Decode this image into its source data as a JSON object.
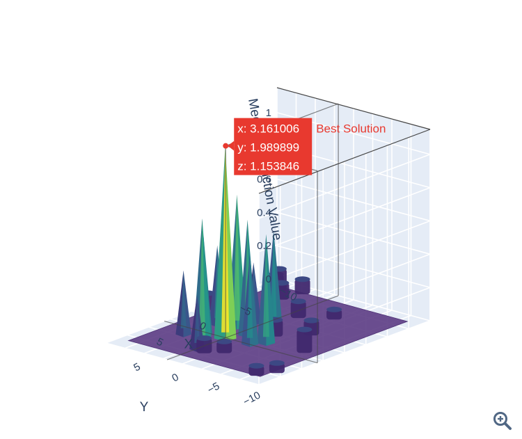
{
  "chart_data": {
    "type": "surface3d",
    "title": "",
    "axes": {
      "x": {
        "title": "X",
        "ticks": [
          "−10",
          "−5",
          "0",
          "5"
        ],
        "range": [
          -10,
          10
        ]
      },
      "y": {
        "title": "Y",
        "ticks": [
          "−10",
          "−5",
          "0",
          "5"
        ],
        "range": [
          -10,
          10
        ]
      },
      "z": {
        "title": "Megacity Function Value",
        "ticks": [
          "0",
          "0.2",
          "0.4",
          "0.6",
          "0.8",
          "1"
        ],
        "range": [
          0,
          1.15
        ]
      }
    },
    "colorscale": [
      "#440154",
      "#3b528b",
      "#21918c",
      "#5ec962",
      "#fde725"
    ],
    "surface_base_value": 0,
    "peaks": [
      {
        "x": 3.2,
        "y": 2.0,
        "z": 1.15
      },
      {
        "x": 1.5,
        "y": 1.0,
        "z": 0.69
      },
      {
        "x": 5.0,
        "y": 3.0,
        "z": 0.74
      },
      {
        "x": 0.5,
        "y": 3.5,
        "z": 0.79
      },
      {
        "x": 3.5,
        "y": 4.5,
        "z": 0.59
      },
      {
        "x": -2.0,
        "y": 1.5,
        "z": 0.55
      },
      {
        "x": 1.0,
        "y": 5.5,
        "z": 0.47
      },
      {
        "x": 2.0,
        "y": -2.0,
        "z": 0.65
      },
      {
        "x": 3.0,
        "y": -1.0,
        "z": 0.54
      },
      {
        "x": -1.0,
        "y": 3.0,
        "z": 0.36
      },
      {
        "x": 4.5,
        "y": 6.0,
        "z": 0.38
      },
      {
        "x": 6.5,
        "y": 2.0,
        "z": 0.32
      }
    ],
    "plateaus": [
      {
        "x": -8.0,
        "y": 7.5,
        "z": 0.13
      },
      {
        "x": -8.5,
        "y": 5.0,
        "z": 0.09
      },
      {
        "x": -9.0,
        "y": 9.0,
        "z": 0.06
      },
      {
        "x": -6.5,
        "y": 5.5,
        "z": 0.1
      },
      {
        "x": -4.0,
        "y": 7.0,
        "z": 0.1
      },
      {
        "x": -1.0,
        "y": 9.0,
        "z": 0.1
      },
      {
        "x": 0.0,
        "y": 5.0,
        "z": 0.16
      },
      {
        "x": 2.0,
        "y": -7.0,
        "z": 0.14
      },
      {
        "x": 8.5,
        "y": -8.0,
        "z": 0.06
      },
      {
        "x": 7.0,
        "y": -9.0,
        "z": 0.06
      },
      {
        "x": -5.5,
        "y": -2.5,
        "z": 0.06
      },
      {
        "x": -1.5,
        "y": -4.0,
        "z": 0.09
      },
      {
        "x": 0.5,
        "y": -1.5,
        "z": 0.1
      },
      {
        "x": -4.0,
        "y": 0.5,
        "z": 0.1
      },
      {
        "x": 6.0,
        "y": -1.0,
        "z": 0.07
      },
      {
        "x": 7.0,
        "y": 0.5,
        "z": 0.09
      }
    ],
    "marker": {
      "name": "Best Solution",
      "x": 3.161006,
      "y": 1.989899,
      "z": 1.153846,
      "color": "#e8392f",
      "hover_lines": [
        "x: 3.161006",
        "y: 1.989899",
        "z: 1.153846"
      ]
    }
  },
  "toolbar": {
    "zoom_icon": "zoom-in-icon"
  }
}
